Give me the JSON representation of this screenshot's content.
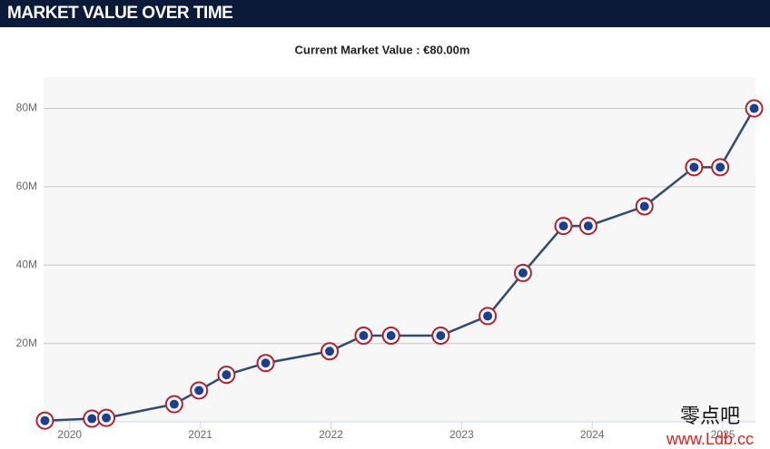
{
  "chart_data": {
    "type": "line",
    "title": "MARKET VALUE OVER TIME",
    "subtitle": "Current Market Value : €80.00m",
    "x": [
      2019.81,
      2020.17,
      2020.28,
      2020.8,
      2020.99,
      2021.2,
      2021.5,
      2021.99,
      2022.25,
      2022.46,
      2022.84,
      2023.2,
      2023.47,
      2023.78,
      2023.97,
      2024.4,
      2024.78,
      2024.98,
      2025.24
    ],
    "values": [
      0.3,
      0.8,
      1,
      4.5,
      8,
      12,
      15,
      18,
      22,
      22,
      22,
      27,
      38,
      50,
      50,
      55,
      65,
      65,
      80
    ],
    "color": "#2f4b6e",
    "xlim": [
      2019.8,
      2025.25
    ],
    "xticks": [
      2020,
      2021,
      2022,
      2023,
      2024,
      2025
    ],
    "ylim": [
      0,
      88
    ],
    "yticks": [
      {
        "value": 20,
        "label": "20M"
      },
      {
        "value": 40,
        "label": "40M"
      },
      {
        "value": 60,
        "label": "60M"
      },
      {
        "value": 80,
        "label": "80M"
      }
    ],
    "grid": true,
    "watermark": [
      "零点吧",
      "www.Ldb.cc"
    ]
  }
}
